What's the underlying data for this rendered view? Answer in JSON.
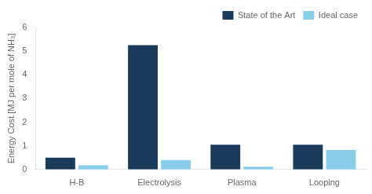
{
  "chart_data": {
    "type": "bar",
    "categories": [
      "H-B",
      "Electrolysis",
      "Plasma",
      "Looping"
    ],
    "series": [
      {
        "name": "State of the Art",
        "color": "#1a3a5c",
        "values": [
          0.5,
          5.25,
          1.05,
          1.05
        ]
      },
      {
        "name": "Ideal case",
        "color": "#87ceeb",
        "values": [
          0.18,
          0.4,
          0.12,
          0.82
        ]
      }
    ],
    "ylabel": "Energy Cost [MJ per mole of NH₃]",
    "ylim": [
      0,
      6
    ],
    "yticks": [
      0,
      1,
      2,
      3,
      4,
      5,
      6
    ],
    "legend": "upper right",
    "grid": false
  }
}
